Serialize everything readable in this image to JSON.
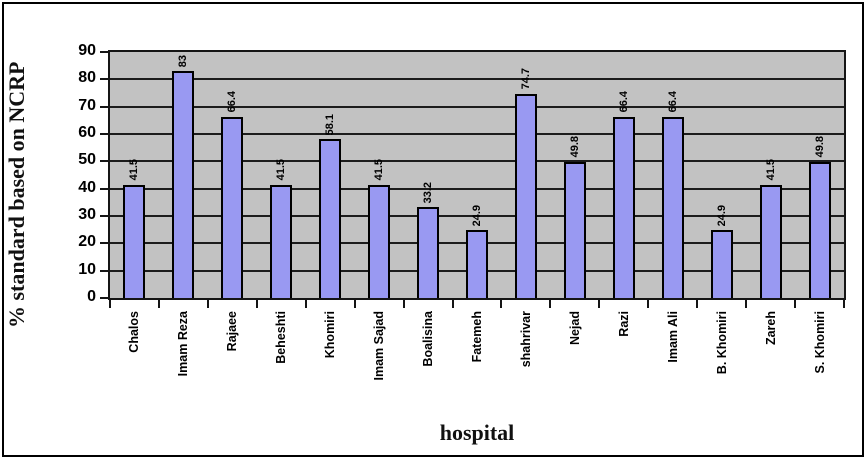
{
  "figure": {
    "background": "#ffffff",
    "border_color": "#000000",
    "plot_background": "#c2c2c2"
  },
  "chart_data": {
    "type": "bar",
    "title": "",
    "xlabel": "hospital",
    "ylabel": "% standard based on NCRP",
    "ylim": [
      0,
      90
    ],
    "yticks": [
      0,
      10,
      20,
      30,
      40,
      50,
      60,
      70,
      80,
      90
    ],
    "grid": true,
    "legend": false,
    "bar_color": "#9999f2",
    "bar_border_color": "#000000",
    "categories": [
      "Chalos",
      "Imam Reza",
      "Rajaee",
      "Beheshti",
      "Khomiri",
      "Imam Sajad",
      "Boalisina",
      "Fatemeh",
      "shahrivar",
      "Nejad",
      "Razi",
      "Imam Ali",
      "B. Khomiri",
      "Zareh",
      "S. Khomiri"
    ],
    "values": [
      41.5,
      83,
      66.4,
      41.5,
      58.1,
      41.5,
      33.2,
      24.9,
      74.7,
      49.8,
      66.4,
      66.4,
      24.9,
      41.5,
      49.8
    ],
    "data_labels": [
      "41.5",
      "83",
      "66.4",
      "41.5",
      "58.1",
      "41.5",
      "33.2",
      "24.9",
      "74.7",
      "49.8",
      "66.4",
      "66.4",
      "24.9",
      "41.5",
      "49.8"
    ]
  }
}
